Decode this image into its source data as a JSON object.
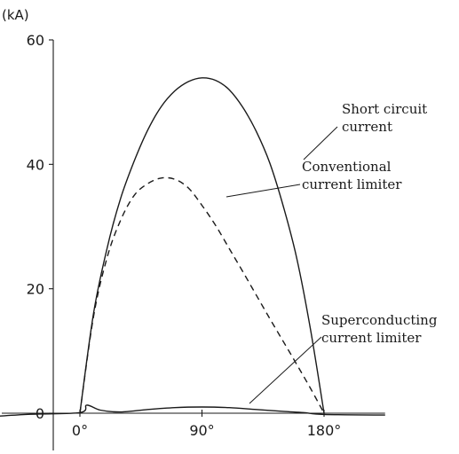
{
  "chart_data": {
    "type": "line",
    "title": "",
    "xlabel": "",
    "ylabel": "(kA)",
    "xlim": [
      -90,
      225
    ],
    "ylim": [
      -4,
      60
    ],
    "x_ticks": [
      {
        "value": 0,
        "label": "0°"
      },
      {
        "value": 90,
        "label": "90°"
      },
      {
        "value": 180,
        "label": "180°"
      }
    ],
    "y_ticks": [
      {
        "value": 0,
        "label": "0"
      },
      {
        "value": 20,
        "label": "20"
      },
      {
        "value": 40,
        "label": "40"
      },
      {
        "value": 60,
        "label": "60"
      }
    ],
    "grid": false,
    "series": [
      {
        "name": "Short circuit current",
        "style": "solid",
        "x": [
          0,
          10,
          20,
          30,
          40,
          50,
          60,
          70,
          80,
          90,
          100,
          110,
          120,
          130,
          140,
          150,
          160,
          170,
          180
        ],
        "y": [
          0,
          16,
          26.5,
          34.5,
          40.5,
          45.5,
          49.3,
          51.8,
          53.3,
          53.9,
          53.5,
          52,
          49.2,
          45.3,
          40.2,
          33.2,
          24.8,
          13.5,
          0
        ]
      },
      {
        "name": "Conventional current limiter",
        "style": "dashed",
        "x": [
          0,
          10,
          20,
          30,
          40,
          50,
          60,
          70,
          80,
          90,
          100,
          110,
          120,
          130,
          140,
          150,
          160,
          170,
          180
        ],
        "y": [
          0,
          15.5,
          25,
          31,
          35,
          36.9,
          37.8,
          37.6,
          36.2,
          33.4,
          30.2,
          26.5,
          22.8,
          19,
          15.2,
          11.5,
          7.8,
          4,
          0
        ]
      },
      {
        "name": "Superconducting current limiter",
        "style": "solid",
        "x": [
          -90,
          -40,
          0,
          5,
          15,
          30,
          50,
          70,
          90,
          110,
          130,
          150,
          165,
          180,
          225
        ],
        "y": [
          -0.9,
          -0.2,
          0.1,
          1.3,
          0.5,
          0.2,
          0.6,
          0.9,
          1.0,
          0.9,
          0.6,
          0.3,
          0.1,
          -0.2,
          -0.3
        ]
      }
    ],
    "annotations": [
      {
        "series": "Short circuit current",
        "lines": [
          "Short circuit",
          "current"
        ]
      },
      {
        "series": "Conventional current limiter",
        "lines": [
          "Conventional",
          "current limiter"
        ]
      },
      {
        "series": "Superconducting current limiter",
        "lines": [
          "Superconducting",
          "current limiter"
        ]
      }
    ]
  }
}
